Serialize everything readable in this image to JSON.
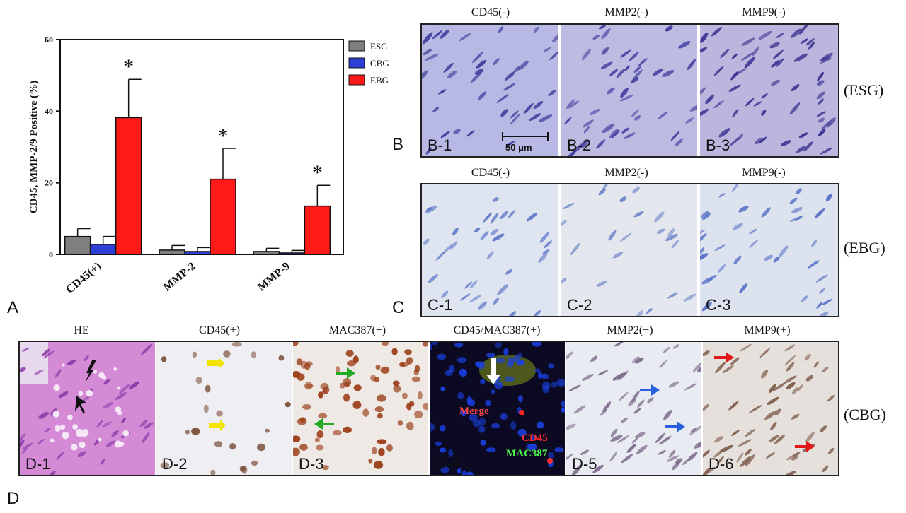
{
  "panel_letters": {
    "a": "A",
    "b": "B",
    "c": "C",
    "d": "D"
  },
  "chart_data": {
    "type": "bar",
    "categories": [
      "CD45(+)",
      "MMP-2",
      "MMP-9"
    ],
    "series": [
      {
        "name": "ESG",
        "color": "#7f7f7f",
        "values": [
          5.0,
          1.2,
          0.8
        ],
        "errors": [
          2.2,
          1.3,
          0.9
        ]
      },
      {
        "name": "CBG",
        "color": "#2e3fd6",
        "values": [
          2.8,
          0.8,
          0.4
        ],
        "errors": [
          2.2,
          1.1,
          0.7
        ]
      },
      {
        "name": "EBG",
        "color": "#ff1a1a",
        "values": [
          38.2,
          21.0,
          13.5
        ],
        "errors": [
          10.7,
          8.6,
          5.8
        ]
      }
    ],
    "significance": [
      "*",
      "*",
      "*"
    ],
    "ylabel": "CD45, MMP-2/9  Positive (%)",
    "ylim": [
      0,
      60
    ],
    "yticks": [
      "0",
      "20",
      "40",
      "60"
    ],
    "legend_position": "top-right"
  },
  "panel_b": {
    "group": "(ESG)",
    "tiles": [
      {
        "title": "CD45(-)",
        "label": "B-1"
      },
      {
        "title": "MMP2(-)",
        "label": "B-2"
      },
      {
        "title": "MMP9(-)",
        "label": "B-3"
      }
    ],
    "scale_bar": "50 μm"
  },
  "panel_c": {
    "group": "(EBG)",
    "tiles": [
      {
        "title": "CD45(-)",
        "label": "C-1"
      },
      {
        "title": "MMP2(-)",
        "label": "C-2"
      },
      {
        "title": "MMP9(-)",
        "label": "C-3"
      }
    ]
  },
  "panel_d": {
    "group": "(CBG)",
    "tiles": [
      {
        "title": "HE",
        "label": "D-1"
      },
      {
        "title": "CD45(+)",
        "label": "D-2"
      },
      {
        "title": "MAC387(+)",
        "label": "D-3"
      },
      {
        "title": "CD45/MAC387(+)",
        "label": "D-4"
      },
      {
        "title": "MMP2(+)",
        "label": "D-5"
      },
      {
        "title": "MMP9(+)",
        "label": "D-6"
      }
    ],
    "fluor_labels": {
      "merge": "Merge",
      "cd45": "CD45",
      "mac387": "MAC387"
    }
  }
}
